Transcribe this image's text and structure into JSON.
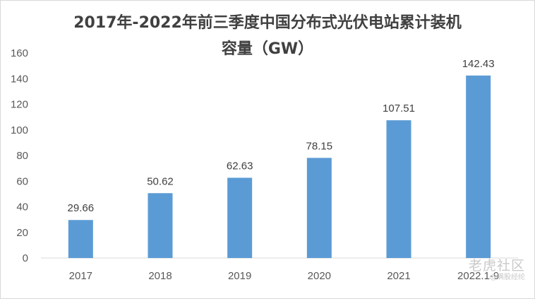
{
  "chart_data": {
    "type": "bar",
    "title_line1": "2017年-2022年前三季度中国分布式光伏电站累计装机",
    "title_line2": "容量（GW）",
    "categories": [
      "2017",
      "2018",
      "2019",
      "2020",
      "2021",
      "2022.1-9"
    ],
    "values": [
      29.66,
      50.62,
      62.63,
      78.15,
      107.51,
      142.43
    ],
    "ylim": [
      0,
      160
    ],
    "yticks": [
      "0",
      "20",
      "40",
      "60",
      "80",
      "100",
      "120",
      "140",
      "160"
    ],
    "xlabel": "",
    "ylabel": "",
    "bar_color": "#5b9bd5",
    "grid": false,
    "legend": "none"
  },
  "watermark": {
    "main": "老虎社区",
    "sub": "@满股经纶"
  }
}
